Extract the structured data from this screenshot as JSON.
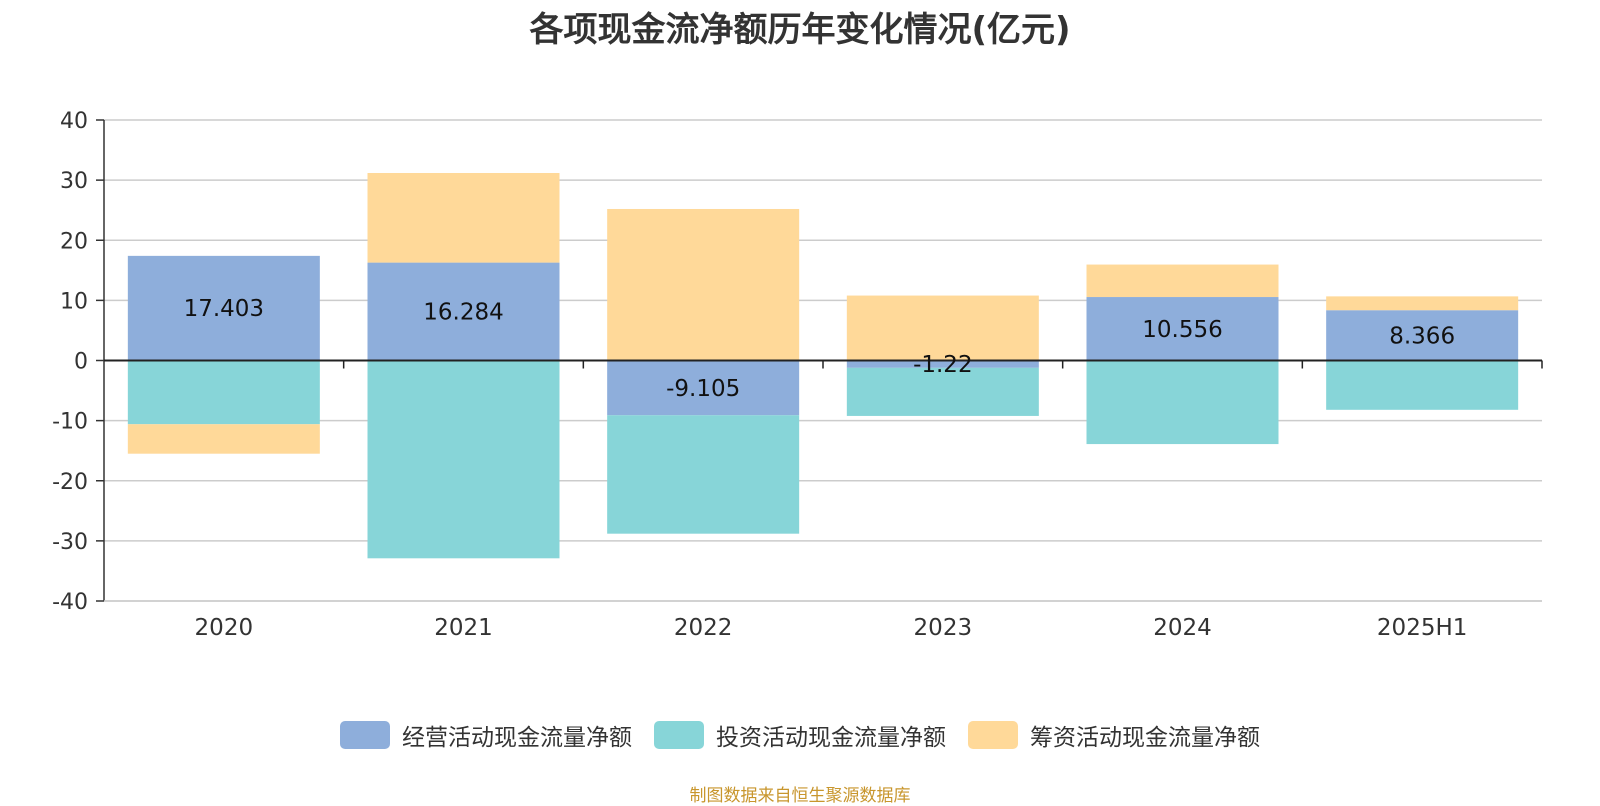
{
  "chart_data": {
    "type": "bar",
    "stacked": true,
    "title": "各项现金流净额历年变化情况(亿元)",
    "categories": [
      "2020",
      "2021",
      "2022",
      "2023",
      "2024",
      "2025H1"
    ],
    "ylim": [
      -40,
      40
    ],
    "yticks": [
      40,
      30,
      20,
      10,
      0,
      -10,
      -20,
      -30,
      -40
    ],
    "grid": true,
    "legend_position": "bottom",
    "series": [
      {
        "name": "经营活动现金流量净额",
        "color": "#8eaedb",
        "values": [
          17.403,
          16.284,
          -9.105,
          -1.22,
          10.556,
          8.366
        ],
        "labels": [
          "17.403",
          "16.284",
          "-9.105",
          "-1.22",
          "10.556",
          "8.366"
        ]
      },
      {
        "name": "投资活动现金流量净额",
        "color": "#87d5d8",
        "values": [
          -10.6,
          -32.9,
          -19.7,
          -8.0,
          -13.9,
          -8.2
        ]
      },
      {
        "name": "筹资活动现金流量净额",
        "color": "#ffd999",
        "values": [
          -4.9,
          14.9,
          25.2,
          10.8,
          5.4,
          2.3
        ]
      }
    ],
    "source": "制图数据来自恒生聚源数据库"
  }
}
